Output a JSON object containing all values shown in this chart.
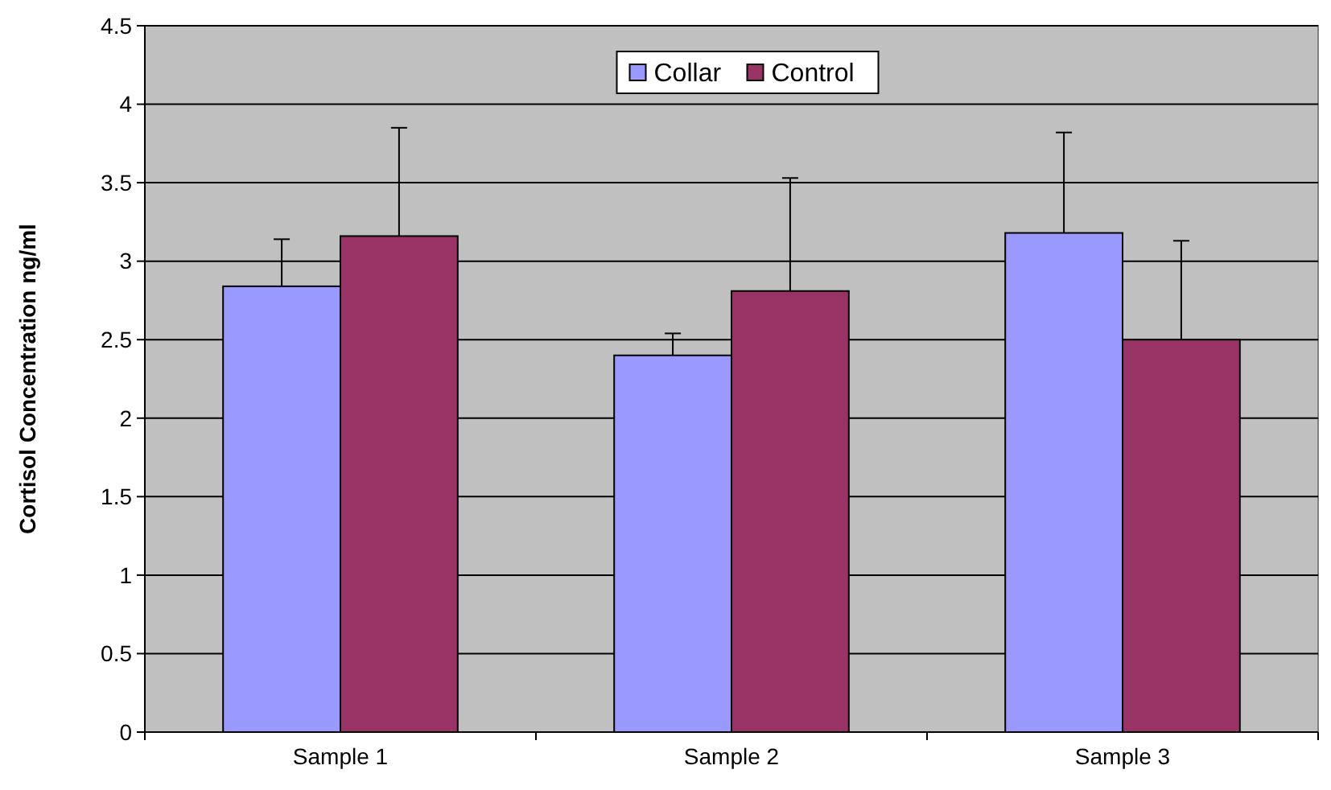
{
  "chart_data": {
    "type": "bar",
    "ylabel": "Cortisol Concentration ng/ml",
    "categories": [
      "Sample 1",
      "Sample 2",
      "Sample 3"
    ],
    "series": [
      {
        "name": "Collar",
        "color": "#9999ff",
        "values": [
          2.84,
          2.4,
          3.18
        ],
        "errors": [
          [
            2.84,
            3.14
          ],
          [
            2.4,
            2.54
          ],
          [
            3.18,
            3.82
          ]
        ]
      },
      {
        "name": "Control",
        "color": "#993366",
        "values": [
          3.16,
          2.81,
          2.5
        ],
        "errors": [
          [
            3.16,
            3.85
          ],
          [
            2.81,
            3.53
          ],
          [
            2.5,
            3.13
          ]
        ]
      }
    ],
    "ylim": [
      0,
      4.5
    ],
    "yticks": [
      0,
      0.5,
      1,
      1.5,
      2,
      2.5,
      3,
      3.5,
      4,
      4.5
    ],
    "grid": "y",
    "legend": "top"
  }
}
